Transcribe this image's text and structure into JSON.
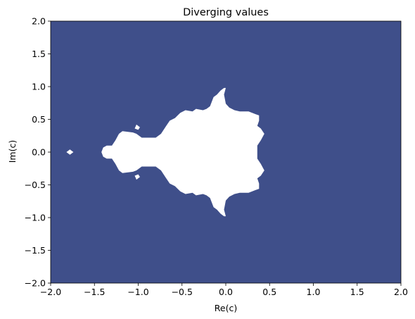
{
  "chart_data": {
    "type": "heatmap",
    "title": "Diverging values",
    "xlabel": "Re(c)",
    "ylabel": "Im(c)",
    "xlim": [
      -2.0,
      2.0
    ],
    "ylim": [
      -2.0,
      2.0
    ],
    "xticks": [
      -2.0,
      -1.5,
      -1.0,
      -0.5,
      0.0,
      0.5,
      1.0,
      1.5,
      2.0
    ],
    "yticks": [
      -2.0,
      -1.5,
      -1.0,
      -0.5,
      0.0,
      0.5,
      1.0,
      1.5,
      2.0
    ],
    "xtick_labels": [
      "−2.0",
      "−1.5",
      "−1.0",
      "−0.5",
      "0.0",
      "0.5",
      "1.0",
      "1.5",
      "2.0"
    ],
    "ytick_labels": [
      "−2.0",
      "−1.5",
      "−1.0",
      "−0.5",
      "0.0",
      "0.5",
      "1.0",
      "1.5",
      "2.0"
    ],
    "colors": {
      "diverging": "#3f4f8a",
      "non_diverging": "#ffffff"
    },
    "non_diverging_region_outline": [
      [
        -1.78,
        0.04
      ],
      [
        -1.74,
        0.0
      ],
      [
        -1.78,
        -0.04
      ],
      [
        -1.82,
        0.0
      ],
      null,
      [
        -1.4,
        0.07
      ],
      [
        -1.36,
        0.1
      ],
      [
        -1.3,
        0.1
      ],
      [
        -1.26,
        0.18
      ],
      [
        -1.22,
        0.28
      ],
      [
        -1.18,
        0.32
      ],
      [
        -1.06,
        0.3
      ],
      [
        -1.02,
        0.28
      ],
      [
        -0.96,
        0.22
      ],
      [
        -0.8,
        0.22
      ],
      [
        -0.74,
        0.28
      ],
      [
        -0.68,
        0.4
      ],
      [
        -0.64,
        0.48
      ],
      [
        -0.58,
        0.52
      ],
      [
        -0.52,
        0.6
      ],
      [
        -0.46,
        0.64
      ],
      [
        -0.38,
        0.62
      ],
      [
        -0.34,
        0.66
      ],
      [
        -0.26,
        0.64
      ],
      [
        -0.22,
        0.66
      ],
      [
        -0.18,
        0.7
      ],
      [
        -0.14,
        0.84
      ],
      [
        -0.1,
        0.88
      ],
      [
        -0.06,
        0.94
      ],
      [
        -0.02,
        0.98
      ],
      [
        0.0,
        0.98
      ],
      [
        -0.02,
        0.88
      ],
      [
        0.0,
        0.74
      ],
      [
        0.04,
        0.68
      ],
      [
        0.1,
        0.64
      ],
      [
        0.16,
        0.62
      ],
      [
        0.26,
        0.62
      ],
      [
        0.34,
        0.58
      ],
      [
        0.38,
        0.56
      ],
      [
        0.38,
        0.48
      ],
      [
        0.36,
        0.4
      ],
      [
        0.4,
        0.36
      ],
      [
        0.44,
        0.28
      ],
      [
        0.4,
        0.18
      ],
      [
        0.36,
        0.1
      ],
      [
        0.36,
        0.0
      ],
      [
        0.36,
        -0.1
      ],
      [
        0.4,
        -0.18
      ],
      [
        0.44,
        -0.28
      ],
      [
        0.4,
        -0.36
      ],
      [
        0.36,
        -0.4
      ],
      [
        0.38,
        -0.48
      ],
      [
        0.38,
        -0.56
      ],
      [
        0.34,
        -0.58
      ],
      [
        0.26,
        -0.62
      ],
      [
        0.16,
        -0.62
      ],
      [
        0.1,
        -0.64
      ],
      [
        0.04,
        -0.68
      ],
      [
        0.0,
        -0.74
      ],
      [
        -0.02,
        -0.88
      ],
      [
        0.0,
        -0.98
      ],
      [
        -0.02,
        -0.98
      ],
      [
        -0.06,
        -0.94
      ],
      [
        -0.1,
        -0.88
      ],
      [
        -0.14,
        -0.84
      ],
      [
        -0.18,
        -0.7
      ],
      [
        -0.22,
        -0.66
      ],
      [
        -0.26,
        -0.64
      ],
      [
        -0.34,
        -0.66
      ],
      [
        -0.38,
        -0.62
      ],
      [
        -0.46,
        -0.64
      ],
      [
        -0.52,
        -0.6
      ],
      [
        -0.58,
        -0.52
      ],
      [
        -0.64,
        -0.48
      ],
      [
        -0.68,
        -0.4
      ],
      [
        -0.74,
        -0.28
      ],
      [
        -0.8,
        -0.22
      ],
      [
        -0.96,
        -0.22
      ],
      [
        -1.02,
        -0.28
      ],
      [
        -1.06,
        -0.3
      ],
      [
        -1.18,
        -0.32
      ],
      [
        -1.22,
        -0.28
      ],
      [
        -1.26,
        -0.18
      ],
      [
        -1.3,
        -0.1
      ],
      [
        -1.36,
        -0.1
      ],
      [
        -1.4,
        -0.07
      ],
      [
        -1.42,
        0.0
      ],
      null,
      [
        -1.02,
        0.42
      ],
      [
        -0.98,
        0.38
      ],
      [
        -1.0,
        0.34
      ],
      [
        -1.04,
        0.36
      ],
      null,
      [
        -1.02,
        -0.42
      ],
      [
        -0.98,
        -0.38
      ],
      [
        -1.0,
        -0.34
      ],
      [
        -1.04,
        -0.36
      ]
    ]
  }
}
